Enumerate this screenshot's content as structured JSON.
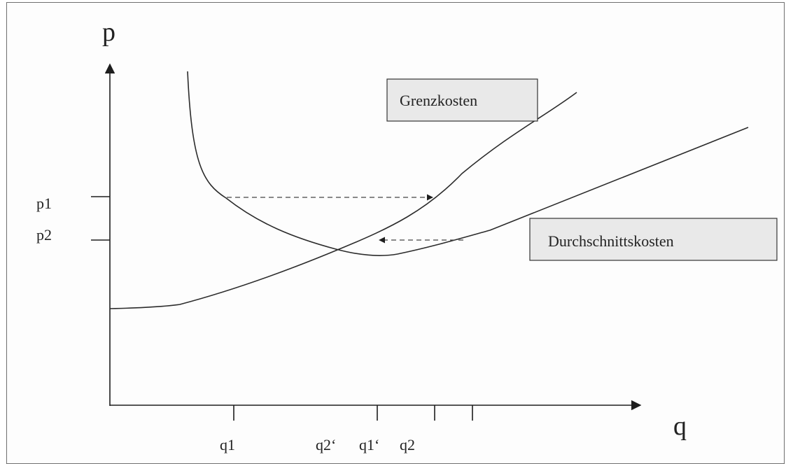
{
  "axes": {
    "y_label": "p",
    "x_label": "q"
  },
  "price_ticks": [
    "p1",
    "p2"
  ],
  "quantity_ticks": [
    "q1",
    "q2‘",
    "q1‘",
    "q2"
  ],
  "legend": {
    "marginal_cost": "Grenzkosten",
    "average_cost": "Durchschnittskosten"
  },
  "colors": {
    "stroke": "#2b2b2b",
    "legend_fill": "#e9e9e9"
  }
}
